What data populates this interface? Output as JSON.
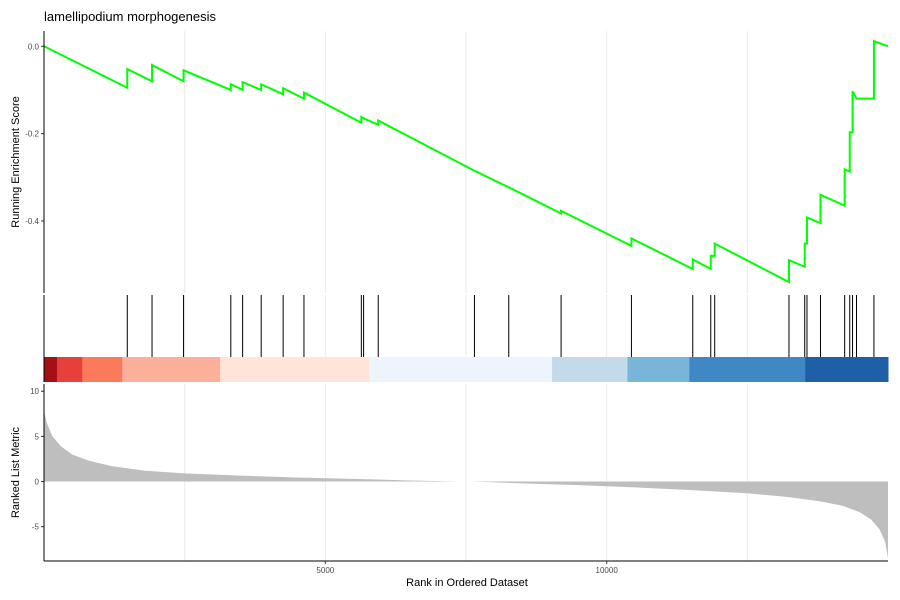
{
  "chart_data": {
    "type": "line",
    "title": "lamellipodium morphogenesis",
    "xlabel": "Rank in Ordered Dataset",
    "xlim": [
      0,
      15000
    ],
    "x_ticks": [
      5000,
      10000
    ],
    "panels": {
      "enrichment": {
        "ylabel": "Running Enrichment Score",
        "ylim": [
          -0.565,
          0.035
        ],
        "y_ticks": [
          {
            "value": 0.0,
            "label": "0.0"
          },
          {
            "value": -0.2,
            "label": "-0.2"
          },
          {
            "value": -0.4,
            "label": "-0.4"
          }
        ],
        "line_color": "#00ff00",
        "series": {
          "x": [
            0,
            1480,
            1480,
            1920,
            1920,
            2480,
            2480,
            3320,
            3320,
            3530,
            3530,
            3860,
            3860,
            4250,
            4250,
            4620,
            4620,
            5640,
            5640,
            5680,
            5680,
            5940,
            5940,
            7650,
            7650,
            8260,
            8260,
            9190,
            9190,
            10440,
            10440,
            11530,
            11530,
            11850,
            11850,
            11920,
            11920,
            13240,
            13240,
            13520,
            13520,
            13560,
            13560,
            13800,
            13800,
            14230,
            14230,
            14320,
            14320,
            14370,
            14370,
            14440,
            14440,
            14750,
            14750,
            15000
          ],
          "y": [
            0.0,
            -0.095,
            -0.052,
            -0.08,
            -0.043,
            -0.08,
            -0.055,
            -0.1,
            -0.087,
            -0.1,
            -0.082,
            -0.1,
            -0.087,
            -0.11,
            -0.096,
            -0.12,
            -0.106,
            -0.175,
            -0.162,
            -0.165,
            -0.165,
            -0.18,
            -0.17,
            -0.285,
            -0.285,
            -0.323,
            -0.323,
            -0.383,
            -0.377,
            -0.457,
            -0.44,
            -0.51,
            -0.488,
            -0.51,
            -0.48,
            -0.48,
            -0.452,
            -0.54,
            -0.49,
            -0.505,
            -0.452,
            -0.452,
            -0.392,
            -0.405,
            -0.34,
            -0.365,
            -0.282,
            -0.287,
            -0.197,
            -0.197,
            -0.103,
            -0.12,
            -0.12,
            -0.12,
            0.012,
            0.0
          ]
        }
      },
      "hits": {
        "positions": [
          1480,
          1920,
          2480,
          3320,
          3530,
          3860,
          4250,
          4620,
          5640,
          5680,
          5940,
          7650,
          8260,
          9190,
          10440,
          11530,
          11850,
          11920,
          13240,
          13520,
          13560,
          13800,
          14230,
          14320,
          14370,
          14440,
          14750
        ]
      },
      "colorbar": {
        "segments": [
          {
            "from": 0,
            "to": 230,
            "color": "#a50f15"
          },
          {
            "from": 230,
            "to": 680,
            "color": "#e5403a"
          },
          {
            "from": 680,
            "to": 1390,
            "color": "#fb7a5c"
          },
          {
            "from": 1390,
            "to": 3130,
            "color": "#fcb09a"
          },
          {
            "from": 3130,
            "to": 5780,
            "color": "#fee4d9"
          },
          {
            "from": 5780,
            "to": 9030,
            "color": "#eef4fb"
          },
          {
            "from": 9030,
            "to": 10370,
            "color": "#c3daea"
          },
          {
            "from": 10370,
            "to": 11470,
            "color": "#79b5d9"
          },
          {
            "from": 11470,
            "to": 13530,
            "color": "#4088c5"
          },
          {
            "from": 13530,
            "to": 15000,
            "color": "#1e5fa7"
          }
        ]
      },
      "metric": {
        "ylabel": "Ranked List Metric",
        "ylim": [
          -8.8,
          10.8
        ],
        "y_ticks": [
          {
            "value": 10,
            "label": "10"
          },
          {
            "value": 5,
            "label": "5"
          },
          {
            "value": 0,
            "label": "0"
          },
          {
            "value": -5,
            "label": "-5"
          }
        ],
        "fill_color": "#bebebe",
        "series": {
          "x": [
            0,
            50,
            150,
            300,
            500,
            800,
            1200,
            1800,
            2500,
            3500,
            4500,
            5500,
            6500,
            7400,
            7600,
            8500,
            9500,
            10500,
            11500,
            12500,
            13200,
            13800,
            14200,
            14500,
            14700,
            14850,
            14950,
            15000
          ],
          "y": [
            7.8,
            6.5,
            5.0,
            3.9,
            3.0,
            2.3,
            1.7,
            1.2,
            0.9,
            0.65,
            0.45,
            0.3,
            0.12,
            0.0,
            0.0,
            -0.2,
            -0.4,
            -0.65,
            -0.95,
            -1.3,
            -1.7,
            -2.2,
            -2.7,
            -3.4,
            -4.2,
            -5.3,
            -6.7,
            -8.5
          ]
        }
      }
    }
  }
}
